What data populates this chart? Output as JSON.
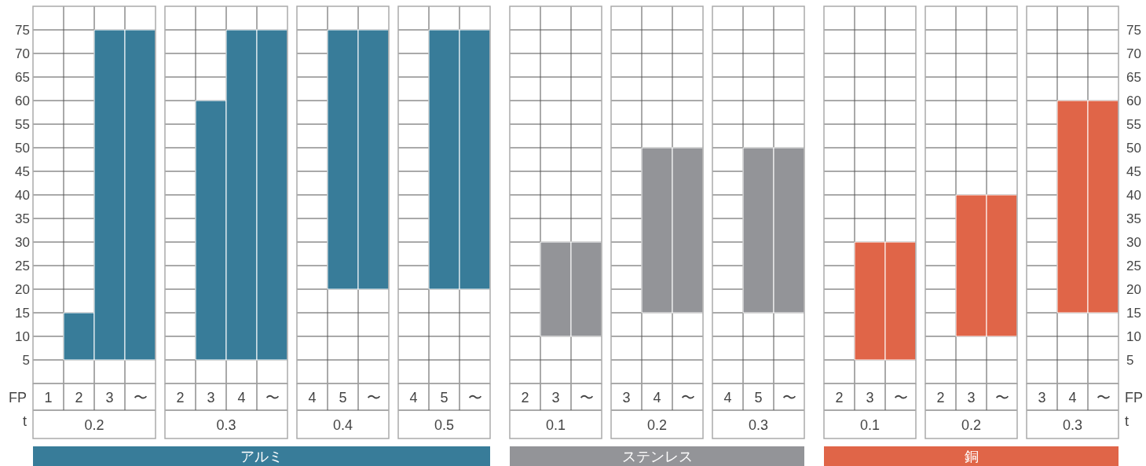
{
  "chart_data": [
    {
      "type": "bar",
      "color": "#387c99",
      "categories": [
        "1",
        "2",
        "3",
        "〜"
      ],
      "base": [
        null,
        5,
        5,
        5
      ],
      "values": [
        null,
        10,
        70,
        70
      ],
      "xlabel": "0.2",
      "ylim": [
        0,
        80
      ],
      "yticks": [
        5,
        10,
        15,
        20,
        25,
        30,
        35,
        40,
        45,
        50,
        55,
        60,
        65,
        70,
        75
      ],
      "grid": true,
      "annotations": [
        "FP",
        "t"
      ]
    },
    {
      "type": "bar",
      "title": "アルミ",
      "color": "#387c99",
      "categories": [
        "2",
        "3",
        "4",
        "〜"
      ],
      "base": [
        null,
        5,
        5,
        5
      ],
      "values": [
        null,
        55,
        70,
        70
      ],
      "xlabel": "0.3",
      "ylim": [
        0,
        80
      ],
      "yticks": [
        5,
        10,
        15,
        20,
        25,
        30,
        35,
        40,
        45,
        50,
        55,
        60,
        65,
        70,
        75
      ],
      "grid": true,
      "tick_labels": "x"
    },
    {
      "type": "bar",
      "color": "#387c99",
      "categories": [
        "4",
        "5",
        "〜"
      ],
      "base": [
        null,
        20,
        20
      ],
      "values": [
        null,
        55,
        55
      ],
      "xlabel": "0.4",
      "ylim": [
        0,
        80
      ],
      "yticks": [
        5,
        10,
        15,
        20,
        25,
        30,
        35,
        40,
        45,
        50,
        55,
        60,
        65,
        70,
        75
      ],
      "grid": true,
      "tick_labels": "x"
    },
    {
      "type": "bar",
      "color": "#387c99",
      "categories": [
        "4",
        "5",
        "〜"
      ],
      "base": [
        null,
        20,
        20
      ],
      "values": [
        null,
        55,
        55
      ],
      "xlabel": "0.5",
      "ylim": [
        0,
        80
      ],
      "yticks": [
        5,
        10,
        15,
        20,
        25,
        30,
        35,
        40,
        45,
        50,
        55,
        60,
        65,
        70,
        75
      ],
      "grid": true,
      "tick_labels": "x"
    },
    {
      "type": "bar",
      "color": "#939498",
      "categories": [
        "2",
        "3",
        "〜"
      ],
      "base": [
        null,
        10,
        10
      ],
      "values": [
        null,
        20,
        20
      ],
      "xlabel": "0.1",
      "ylim": [
        0,
        80
      ],
      "yticks": [
        5,
        10,
        15,
        20,
        25,
        30,
        35,
        40,
        45,
        50,
        55,
        60,
        65,
        70,
        75
      ],
      "grid": true,
      "tick_labels": "x"
    },
    {
      "type": "bar",
      "title": "ステンレス",
      "color": "#939498",
      "categories": [
        "3",
        "4",
        "〜"
      ],
      "base": [
        null,
        15,
        15
      ],
      "values": [
        null,
        35,
        35
      ],
      "xlabel": "0.2",
      "ylim": [
        0,
        80
      ],
      "yticks": [
        5,
        10,
        15,
        20,
        25,
        30,
        35,
        40,
        45,
        50,
        55,
        60,
        65,
        70,
        75
      ],
      "grid": true,
      "tick_labels": "x"
    },
    {
      "type": "bar",
      "color": "#939498",
      "categories": [
        "4",
        "5",
        "〜"
      ],
      "base": [
        null,
        15,
        15
      ],
      "values": [
        null,
        35,
        35
      ],
      "xlabel": "0.3",
      "ylim": [
        0,
        80
      ],
      "yticks": [
        5,
        10,
        15,
        20,
        25,
        30,
        35,
        40,
        45,
        50,
        55,
        60,
        65,
        70,
        75
      ],
      "grid": true,
      "tick_labels": "x"
    },
    {
      "type": "bar",
      "color": "#e06548",
      "categories": [
        "2",
        "3",
        "〜"
      ],
      "base": [
        null,
        5,
        5
      ],
      "values": [
        null,
        25,
        25
      ],
      "xlabel": "0.1",
      "ylim": [
        0,
        80
      ],
      "yticks": [
        5,
        10,
        15,
        20,
        25,
        30,
        35,
        40,
        45,
        50,
        55,
        60,
        65,
        70,
        75
      ],
      "grid": true,
      "tick_labels": "x"
    },
    {
      "type": "bar",
      "title": "銅",
      "color": "#e06548",
      "categories": [
        "2",
        "3",
        "〜"
      ],
      "base": [
        null,
        10,
        10
      ],
      "values": [
        null,
        30,
        30
      ],
      "xlabel": "0.2",
      "ylim": [
        0,
        80
      ],
      "yticks": [
        5,
        10,
        15,
        20,
        25,
        30,
        35,
        40,
        45,
        50,
        55,
        60,
        65,
        70,
        75
      ],
      "grid": true,
      "tick_labels": "x"
    },
    {
      "type": "bar",
      "color": "#e06548",
      "categories": [
        "3",
        "4",
        "〜"
      ],
      "base": [
        null,
        15,
        15
      ],
      "values": [
        null,
        45,
        45
      ],
      "xlabel": "0.3",
      "ylim": [
        0,
        80
      ],
      "yticks": [
        5,
        10,
        15,
        20,
        25,
        30,
        35,
        40,
        45,
        50,
        55,
        60,
        65,
        70,
        75
      ],
      "grid": true,
      "annotations": [
        "FP",
        "t"
      ]
    }
  ]
}
